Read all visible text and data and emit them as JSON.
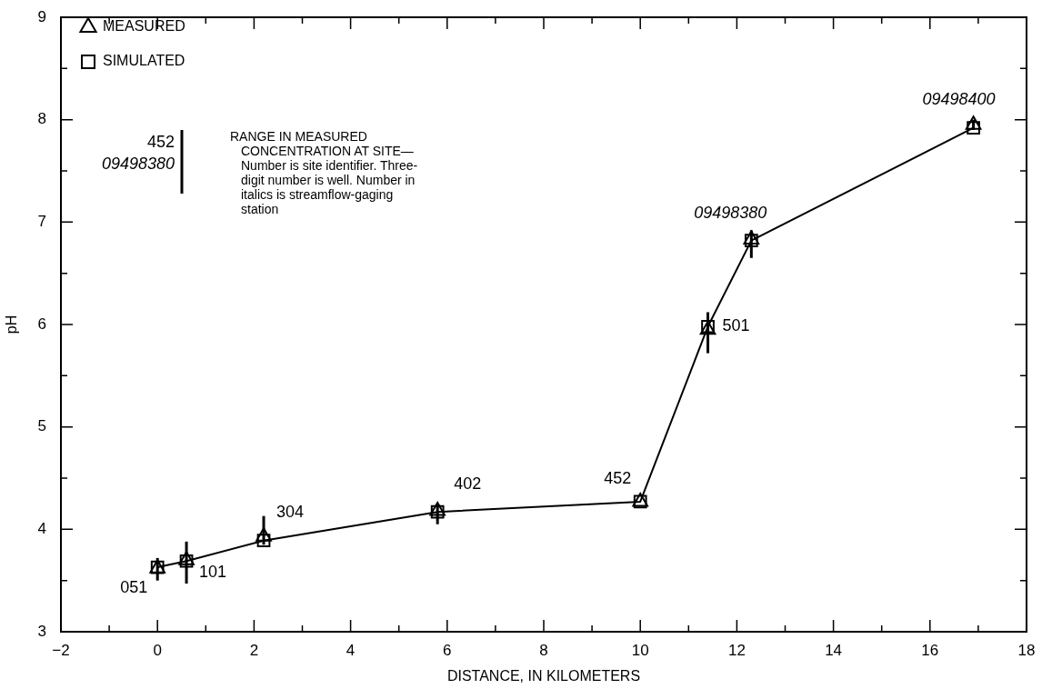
{
  "chart_data": {
    "type": "line",
    "xlabel": "DISTANCE, IN KILOMETERS",
    "ylabel": "pH",
    "legend": "top left",
    "x": [
      0,
      0.6,
      2.2,
      5.8,
      10,
      11.4,
      12.3,
      16.9
    ],
    "xlim": [
      -2,
      18
    ],
    "xticks": [
      -2,
      {
        "value": -1,
        "label": null
      },
      0,
      {
        "value": 1,
        "label": null
      },
      2,
      {
        "value": 3,
        "label": null
      },
      4,
      {
        "value": 5,
        "label": null
      },
      6,
      {
        "value": 7,
        "label": null
      },
      8,
      {
        "value": 9,
        "label": null
      },
      10,
      {
        "value": 11,
        "label": null
      },
      12,
      {
        "value": 13,
        "label": null
      },
      14,
      {
        "value": 15,
        "label": null
      },
      16,
      {
        "value": 17,
        "label": null
      },
      18
    ],
    "ylim": [
      3,
      9
    ],
    "yticks": [
      3,
      {
        "value": 3.5,
        "label": null
      },
      4,
      {
        "value": 4.5,
        "label": null
      },
      5,
      {
        "value": 5.5,
        "label": null
      },
      6,
      {
        "value": 6.5,
        "label": null
      },
      7,
      {
        "value": 7.5,
        "label": null
      },
      8,
      {
        "value": 8.5,
        "label": null
      },
      9
    ],
    "series": [
      {
        "name": "MEASURED",
        "type": "scatter",
        "marker": "triangle",
        "color": "#000000",
        "values": [
          3.62,
          3.7,
          3.93,
          4.18,
          4.27,
          5.95,
          6.83,
          7.95
        ],
        "errors": [
          [
            3.5,
            3.72
          ],
          [
            3.47,
            3.88
          ],
          [
            3.85,
            4.13
          ],
          [
            4.05,
            4.24
          ],
          null,
          [
            5.72,
            6.12
          ],
          [
            6.65,
            6.92
          ],
          [
            7.9,
            8.0
          ]
        ]
      },
      {
        "name": "SIMULATED",
        "type": "line",
        "marker": "square",
        "color": "#000000",
        "values": [
          3.63,
          3.69,
          3.89,
          4.17,
          4.27,
          5.98,
          6.82,
          7.92
        ]
      }
    ],
    "annotations": [
      "RANGE IN MEASURED CONCENTRATION AT SITE—Number is site identifier. Three-digit number is well. Number in italics is streamflow-gaging station",
      "452",
      "09498380",
      {
        "text": "051",
        "x": 0,
        "y": 3.63
      },
      {
        "text": "101",
        "x": 0.6,
        "y": 3.69
      },
      {
        "text": "304",
        "x": 2.2,
        "y": 3.89
      },
      {
        "text": "402",
        "x": 5.8,
        "y": 4.17
      },
      {
        "text": "452",
        "x": 10,
        "y": 4.27
      },
      {
        "text": "501",
        "x": 11.4,
        "y": 5.98
      },
      {
        "text": "09498380",
        "x": 12.3,
        "y": 6.82
      },
      {
        "text": "09498400",
        "x": 16.9,
        "y": 7.92
      }
    ]
  }
}
